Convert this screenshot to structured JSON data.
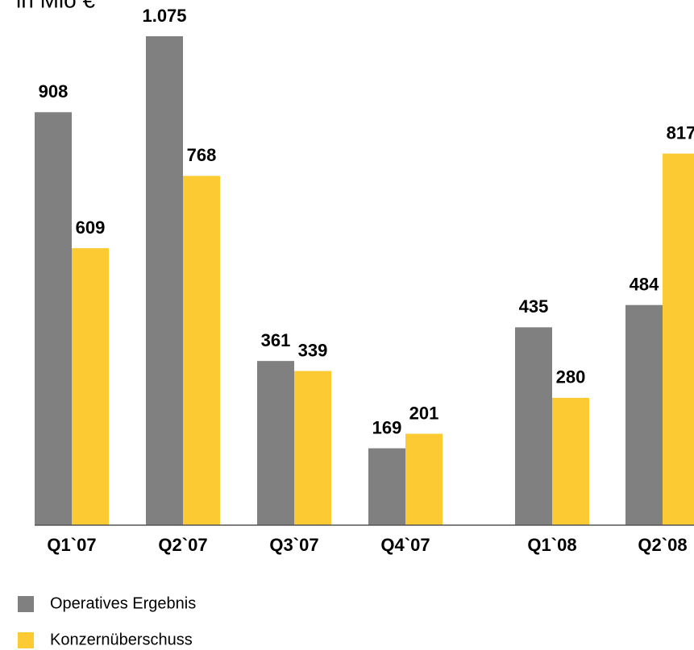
{
  "chart_data": {
    "type": "bar",
    "title": "in Mio €",
    "categories": [
      "Q1`07",
      "Q2`07",
      "Q3`07",
      "Q4`07",
      "Q1`08",
      "Q2`08"
    ],
    "series": [
      {
        "name": "Operatives Ergebnis",
        "color": "#808080",
        "values": [
          908,
          1075,
          361,
          169,
          435,
          484
        ],
        "value_labels": [
          "908",
          "1.075",
          "361",
          "169",
          "435",
          "484"
        ]
      },
      {
        "name": "Konzernüberschuss",
        "color": "#fccb33",
        "values": [
          609,
          768,
          339,
          201,
          280,
          817
        ],
        "value_labels": [
          "609",
          "768",
          "339",
          "201",
          "280",
          "817"
        ]
      }
    ],
    "ylim": [
      0,
      1075
    ]
  }
}
